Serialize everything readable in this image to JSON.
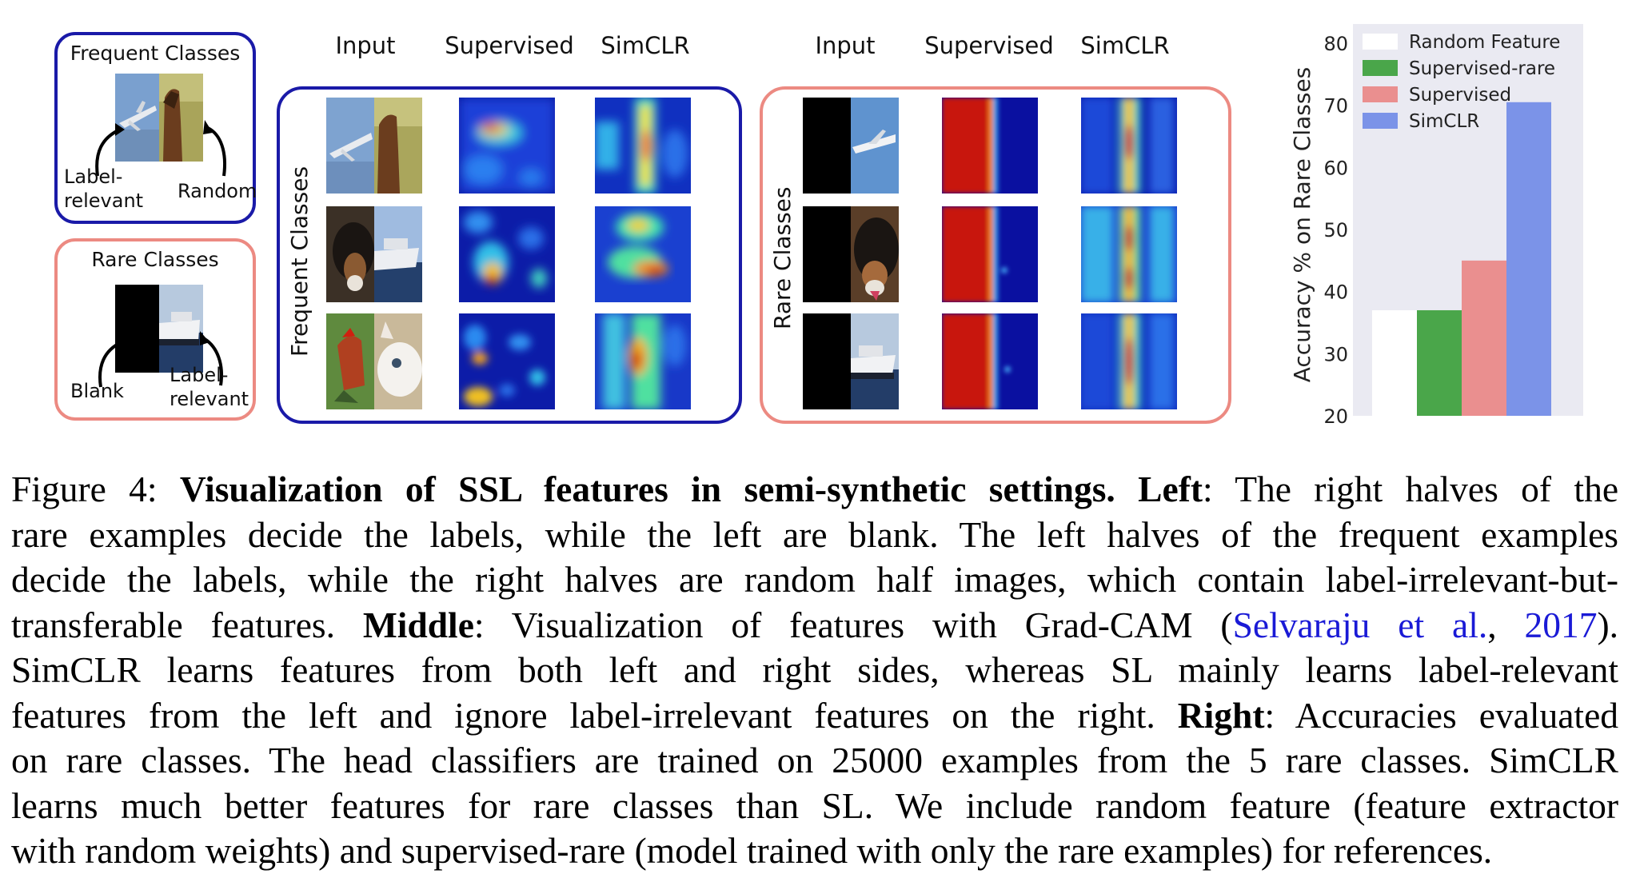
{
  "legend": {
    "frequent_title": "Frequent Classes",
    "frequent_left_label": [
      "Label-",
      "relevant"
    ],
    "frequent_right_label": "Random",
    "rare_title": "Rare Classes",
    "rare_left_label": "Blank",
    "rare_right_label": [
      "Label-",
      "relevant"
    ]
  },
  "middle": {
    "frequent_panel": {
      "row_label": "Frequent Classes",
      "columns": [
        "Input",
        "Supervised",
        "SimCLR"
      ],
      "rows": [
        {
          "input": "airplane + horse"
        },
        {
          "input": "dog + ship"
        },
        {
          "input": "rooster + cat"
        }
      ]
    },
    "rare_panel": {
      "row_label": "Rare Classes",
      "columns": [
        "Input",
        "Supervised",
        "SimCLR"
      ],
      "rows": [
        {
          "input": "blank + airplane"
        },
        {
          "input": "blank + dog"
        },
        {
          "input": "blank + ship"
        }
      ]
    }
  },
  "chart_data": {
    "type": "bar",
    "title": "",
    "xlabel": "",
    "ylabel": "Accuracy % on Rare Classes",
    "ylim": [
      20,
      80
    ],
    "yticks": [
      20,
      30,
      40,
      50,
      60,
      70,
      80
    ],
    "grid": false,
    "legend_placement": "top",
    "series": [
      {
        "name": "Random Feature",
        "value": 37,
        "color": "#ffffff"
      },
      {
        "name": "Supervised-rare",
        "value": 37,
        "color": "#4aa64a"
      },
      {
        "name": "Supervised",
        "value": 45,
        "color": "#ea8f8f"
      },
      {
        "name": "SimCLR",
        "value": 70.5,
        "color": "#7b93e8"
      }
    ],
    "background": "#eaeaf2"
  },
  "caption": {
    "fig_label": "Figure 4:",
    "bold_title": "Visualization of SSL features in semi-synthetic settings.",
    "left_bold": "Left",
    "left_text_1": ": The right halves of the",
    "line2": "rare examples decide the labels, while the left are blank. The left halves of the frequent examples",
    "line3": "decide the labels, while the right halves are random half images, which contain label-irrelevant-but-",
    "line4_a": "transferable features.",
    "middle_bold": "Middle",
    "line4_b": ": Visualization of features with Grad-CAM (",
    "cite_author": "Selvaraju et al.",
    "cite_sep": ", ",
    "cite_year": "2017",
    "line4_c": ").",
    "line5": "SimCLR learns features from both left and right sides, whereas SL mainly learns label-relevant",
    "line6_a": "features from the left and ignore label-irrelevant features on the right.",
    "right_bold": "Right",
    "line6_b": ": Accuracies evaluated",
    "line7": "on rare classes. The head classifiers are trained on 25000 examples from the 5 rare classes. SimCLR",
    "line8": "learns much better features for rare classes than SL. We include random feature (feature extractor",
    "line9": "with random weights) and supervised-rare (model trained with only the rare examples) for references."
  }
}
